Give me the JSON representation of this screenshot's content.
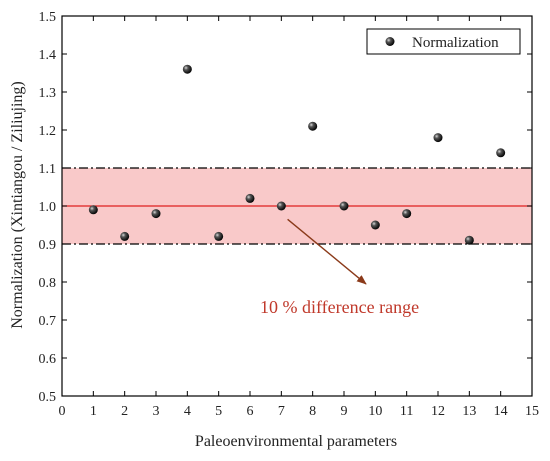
{
  "chart_data": {
    "type": "scatter",
    "xlabel": "Paleoenvironmental parameters",
    "ylabel": "Normalization (Xintiangou / Ziliujing)",
    "xlim": [
      0,
      15
    ],
    "ylim": [
      0.5,
      1.5
    ],
    "xticks": [
      0,
      1,
      2,
      3,
      4,
      5,
      6,
      7,
      8,
      9,
      10,
      11,
      12,
      13,
      14,
      15
    ],
    "yticks": [
      "0.5",
      "0.6",
      "0.7",
      "0.8",
      "0.9",
      "1.0",
      "1.1",
      "1.2",
      "1.3",
      "1.4",
      "1.5"
    ],
    "grid": false,
    "legend_position": "top-right",
    "series": [
      {
        "name": "Normalization",
        "x": [
          1,
          2,
          3,
          4,
          5,
          6,
          7,
          8,
          9,
          10,
          11,
          12,
          13,
          14
        ],
        "y": [
          0.99,
          0.92,
          0.98,
          1.36,
          0.92,
          1.02,
          1.0,
          1.21,
          1.0,
          0.95,
          0.98,
          1.18,
          0.91,
          1.14
        ]
      }
    ],
    "reference_line": 1.0,
    "band": [
      0.9,
      1.1
    ],
    "annotation": {
      "text": "10 % difference range",
      "arrow_from": [
        7.2,
        0.965
      ],
      "arrow_to": [
        9.7,
        0.795
      ]
    },
    "colors": {
      "band": "#f9c9c9",
      "reference": "#e02020",
      "arrow": "#8b3a1a",
      "annotation": "#c0392b",
      "point": "#111111"
    }
  }
}
